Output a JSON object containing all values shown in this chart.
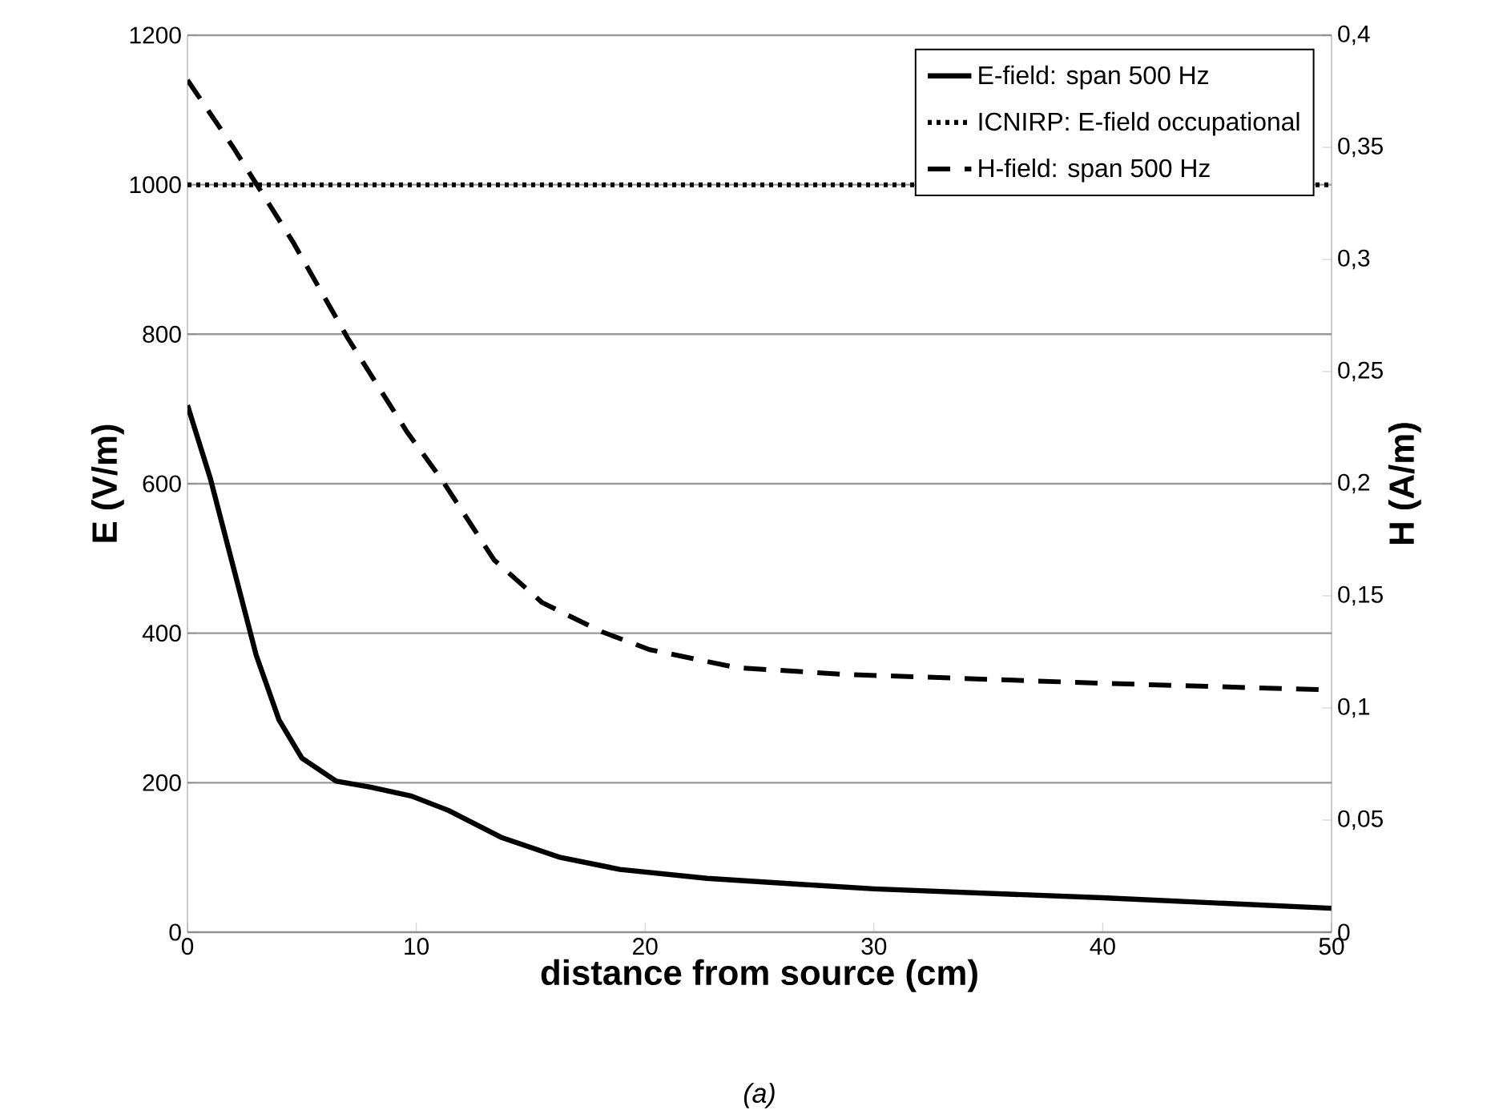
{
  "chart_data": {
    "type": "line",
    "xlabel": "distance from source (cm)",
    "ylabel": "E (V/m)",
    "y2label": "H (A/m)",
    "annotations": [
      "(a)"
    ],
    "xlim": [
      0,
      50
    ],
    "xticks": [
      0,
      10,
      20,
      30,
      40,
      50
    ],
    "ylim": [
      0,
      1200
    ],
    "yticks": [
      0,
      200,
      400,
      600,
      800,
      1000,
      1200
    ],
    "y2lim": [
      0,
      0.4
    ],
    "y2ticks": [
      {
        "value": 0,
        "label": "0"
      },
      {
        "value": 0.05,
        "label": "0,05"
      },
      {
        "value": 0.1,
        "label": "0,1"
      },
      {
        "value": 0.15,
        "label": "0,15"
      },
      {
        "value": 0.2,
        "label": "0,2"
      },
      {
        "value": 0.25,
        "label": "0,25"
      },
      {
        "value": 0.3,
        "label": "0,3"
      },
      {
        "value": 0.35,
        "label": "0,35"
      },
      {
        "value": 0.4,
        "label": "0,4"
      }
    ],
    "grid": "y",
    "legend": "top right",
    "marker": "none",
    "series": [
      {
        "name": "E-field: span 500 Hz",
        "color": "#000000",
        "line_style": "solid",
        "x": [
          0,
          1,
          2,
          3,
          4,
          5,
          6.5,
          8,
          9.8,
          11.4,
          13.7,
          16.3,
          18.9,
          22.7,
          26.8,
          30,
          40,
          50
        ],
        "values": [
          705,
          607,
          489,
          371,
          284,
          233,
          202,
          194,
          182,
          163,
          127,
          100,
          84,
          72,
          64,
          58,
          46,
          32
        ]
      },
      {
        "name": "ICNIRP: E-field occupational",
        "color": "#000000",
        "line_style": "dotted",
        "x": [
          0,
          50
        ],
        "values": [
          1000,
          1000
        ]
      },
      {
        "name": "H-field: span 500 Hz",
        "color": "#000000",
        "line_style": "dashed",
        "axis": "y2",
        "x": [
          0,
          2,
          4.6,
          7,
          9.6,
          11.1,
          13.4,
          15.5,
          18.1,
          20.2,
          24,
          28.7,
          40,
          50
        ],
        "values": [
          0.38,
          0.35,
          0.308,
          0.265,
          0.223,
          0.202,
          0.166,
          0.147,
          0.134,
          0.126,
          0.118,
          0.115,
          0.111,
          0.108
        ]
      }
    ]
  }
}
